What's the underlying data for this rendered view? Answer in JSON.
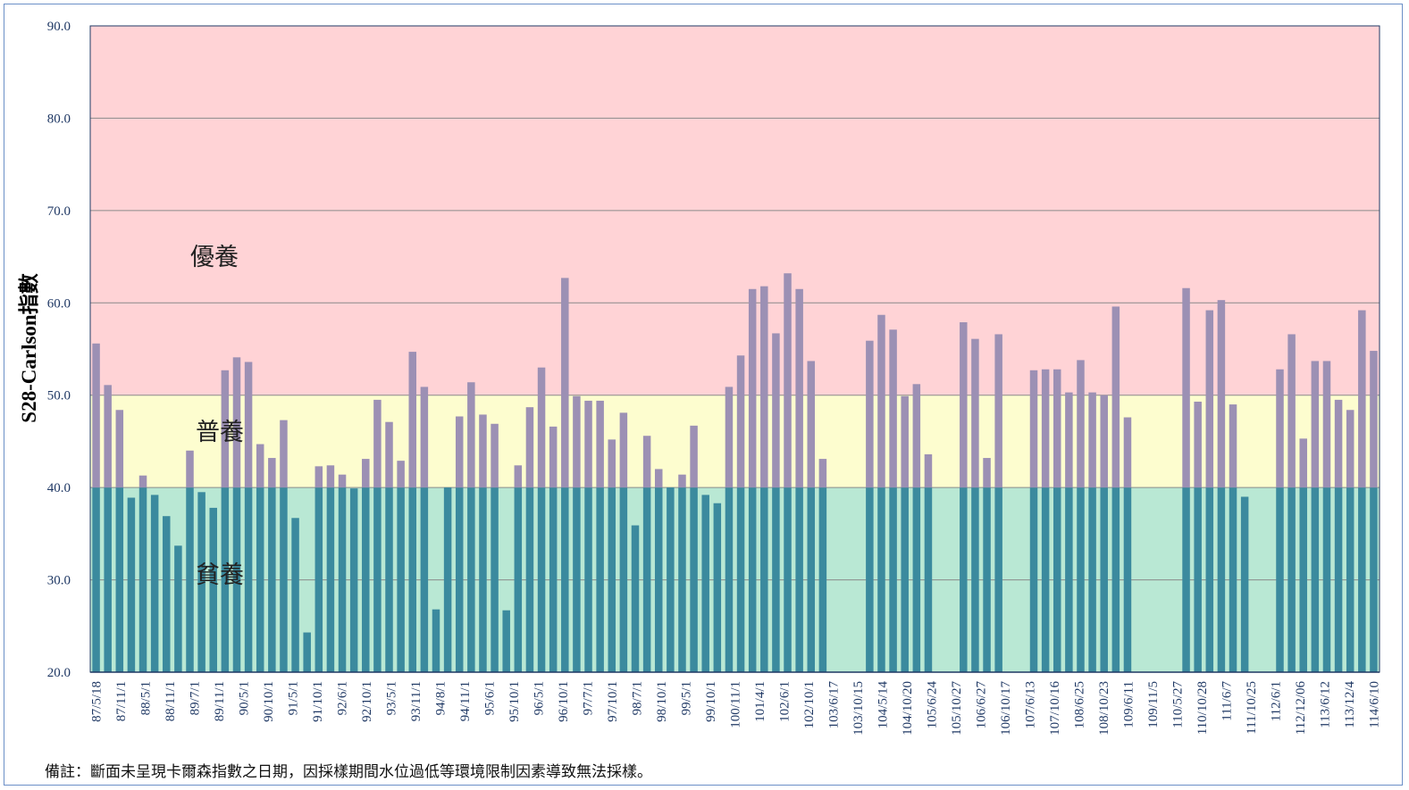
{
  "chart_data": {
    "type": "bar",
    "ylabel": "S28-Carlson指數",
    "ylim": [
      20,
      90
    ],
    "yticks": [
      "20.0",
      "30.0",
      "40.0",
      "50.0",
      "60.0",
      "70.0",
      "80.0",
      "90.0"
    ],
    "grid": true,
    "zones": [
      {
        "label": "貧養",
        "from": 20,
        "to": 40,
        "color": "#b9e8d4"
      },
      {
        "label": "普養",
        "from": 40,
        "to": 50,
        "color": "#fdfdcf"
      },
      {
        "label": "優養",
        "from": 50,
        "to": 90,
        "color": "#ffd3d6"
      }
    ],
    "colors": {
      "bar_low": "#3b8a9e",
      "bar_high": "#9c90b4"
    },
    "xtick_labels": [
      "87/5/18",
      "87/11/1",
      "88/5/1",
      "88/11/1",
      "89/7/1",
      "89/11/1",
      "90/5/1",
      "90/10/1",
      "91/5/1",
      "91/10/1",
      "92/6/1",
      "92/10/1",
      "93/5/1",
      "93/11/1",
      "94/8/1",
      "94/11/1",
      "95/6/1",
      "95/10/1",
      "96/5/1",
      "96/10/1",
      "97/7/1",
      "97/10/1",
      "98/7/1",
      "98/10/1",
      "99/5/1",
      "99/10/1",
      "100/11/1",
      "101/4/1",
      "102/6/1",
      "102/10/1",
      "103/6/17",
      "103/10/15",
      "104/5/14",
      "104/10/20",
      "105/6/24",
      "105/10/27",
      "106/6/27",
      "106/10/17",
      "107/6/13",
      "107/10/16",
      "108/6/25",
      "108/10/23",
      "109/6/11",
      "109/11/5",
      "110/5/27",
      "110/10/28",
      "111/6/7",
      "111/10/25",
      "112/6/1",
      "112/12/06",
      "113/6/12",
      "113/12/4",
      "114/6/10"
    ],
    "values": [
      55.6,
      51.1,
      48.4,
      38.9,
      41.3,
      39.2,
      36.9,
      33.7,
      44.0,
      39.5,
      37.8,
      52.7,
      54.1,
      53.6,
      44.7,
      43.2,
      47.3,
      36.7,
      24.3,
      42.3,
      42.4,
      41.4,
      39.9,
      43.1,
      49.5,
      47.1,
      42.9,
      54.7,
      50.9,
      26.8,
      40.0,
      47.7,
      51.4,
      47.9,
      46.9,
      26.7,
      42.4,
      48.7,
      53.0,
      46.6,
      62.7,
      49.9,
      49.4,
      49.4,
      45.2,
      48.1,
      35.9,
      45.6,
      42.0,
      40.0,
      41.4,
      46.7,
      39.2,
      38.3,
      50.9,
      54.3,
      61.5,
      61.8,
      56.7,
      63.2,
      61.5,
      53.7,
      43.1,
      null,
      null,
      null,
      55.9,
      58.7,
      57.1,
      49.9,
      51.2,
      43.6,
      null,
      null,
      57.9,
      56.1,
      43.2,
      56.6,
      null,
      null,
      52.7,
      52.8,
      52.8,
      50.3,
      53.8,
      50.3,
      50.0,
      59.6,
      47.6,
      null,
      null,
      null,
      null,
      61.6,
      49.3,
      59.2,
      60.3,
      49.0,
      39.0,
      null,
      null,
      52.8,
      56.6,
      45.3,
      53.7,
      53.7,
      49.5,
      48.4,
      59.2,
      54.8
    ]
  },
  "zone_labels": {
    "eutrophic": "優養",
    "mesotrophic": "普養",
    "oligotrophic": "貧養"
  },
  "note": "備註：斷面未呈現卡爾森指數之日期，因採樣期間水位過低等環境限制因素導致無法採樣。"
}
